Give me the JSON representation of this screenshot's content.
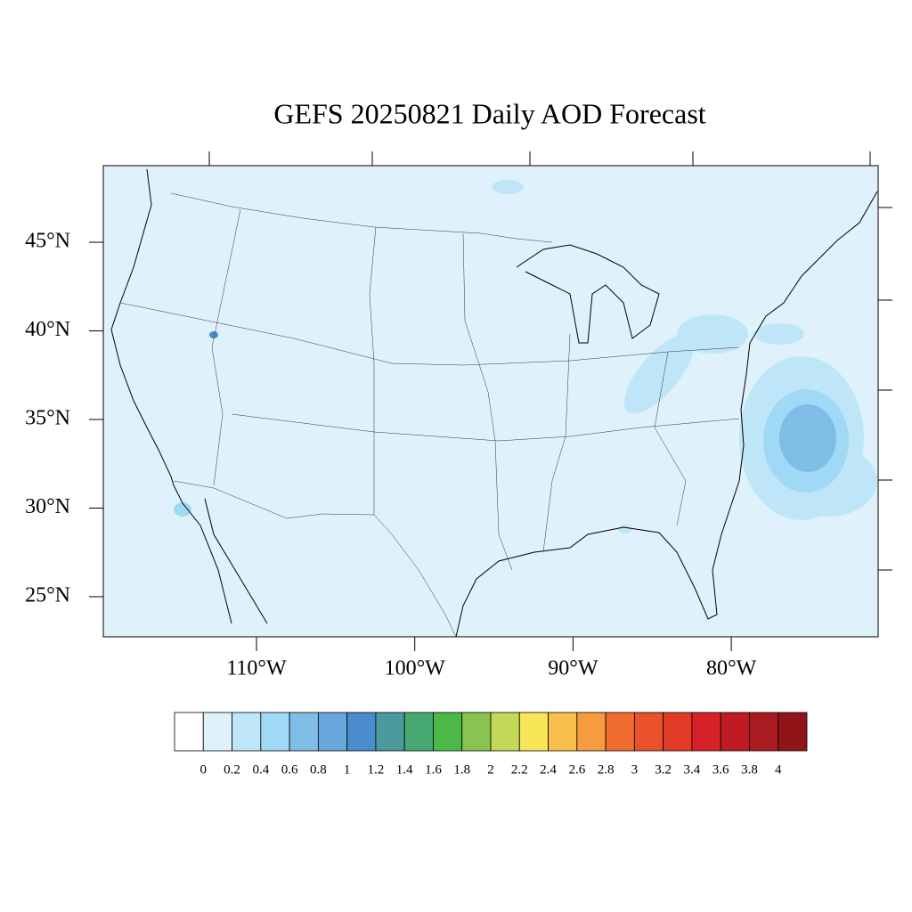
{
  "title": "GEFS 20250821 Daily AOD Forecast",
  "map": {
    "lat_ticks": [
      {
        "value": 45,
        "label": "45°N"
      },
      {
        "value": 40,
        "label": "40°N"
      },
      {
        "value": 35,
        "label": "35°N"
      },
      {
        "value": 30,
        "label": "30°N"
      },
      {
        "value": 25,
        "label": "25°N"
      }
    ],
    "lon_ticks": [
      {
        "value": -110,
        "label": "110°W"
      },
      {
        "value": -100,
        "label": "100°W"
      },
      {
        "value": -90,
        "label": "90°W"
      },
      {
        "value": -80,
        "label": "80°W"
      }
    ]
  },
  "colorbar": {
    "levels": [
      0,
      0.2,
      0.4,
      0.6,
      0.8,
      1,
      1.2,
      1.4,
      1.6,
      1.8,
      2,
      2.2,
      2.4,
      2.6,
      2.8,
      3,
      3.2,
      3.4,
      3.6,
      3.8,
      4
    ],
    "colors": [
      "#ffffff",
      "#dff2fb",
      "#bfe6f8",
      "#9fd9f5",
      "#7fbde6",
      "#68a8dc",
      "#4a8ccc",
      "#4a9a9e",
      "#48a872",
      "#4cb848",
      "#88c44f",
      "#c3d856",
      "#f8e658",
      "#f8c04a",
      "#f59c3e",
      "#f06c2e",
      "#e9522b",
      "#e13a27",
      "#d62128",
      "#c01b25",
      "#a91b20",
      "#911518"
    ]
  }
}
